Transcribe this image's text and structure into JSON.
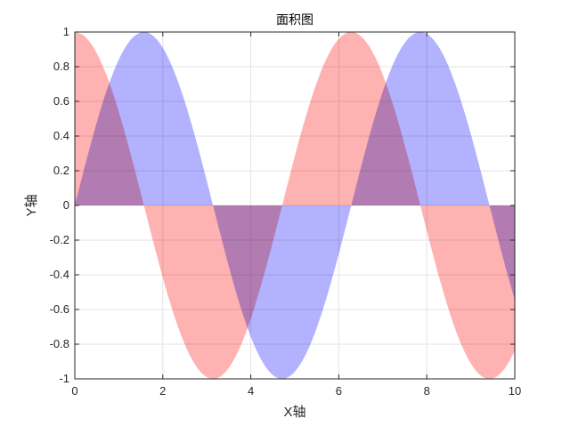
{
  "chart_data": {
    "type": "area",
    "title": "面积图",
    "xlabel": "X轴",
    "ylabel": "Y轴",
    "xlim": [
      0,
      10
    ],
    "ylim": [
      -1,
      1
    ],
    "xticks": [
      "0",
      "2",
      "4",
      "6",
      "8",
      "10"
    ],
    "yticks": [
      "-1",
      "-0.8",
      "-0.6",
      "-0.4",
      "-0.2",
      "0",
      "0.2",
      "0.4",
      "0.6",
      "0.8",
      "1"
    ],
    "grid": true,
    "x": [
      0,
      0.2,
      0.4,
      0.6,
      0.8,
      1,
      1.2,
      1.4,
      1.6,
      1.8,
      2,
      2.2,
      2.4,
      2.6,
      2.8,
      3,
      3.2,
      3.4,
      3.6,
      3.8,
      4,
      4.2,
      4.4,
      4.6,
      4.8,
      5,
      5.2,
      5.4,
      5.6,
      5.8,
      6,
      6.2,
      6.4,
      6.6,
      6.8,
      7,
      7.2,
      7.4,
      7.6,
      7.8,
      8,
      8.2,
      8.4,
      8.6,
      8.8,
      9,
      9.2,
      9.4,
      9.6,
      9.8,
      10
    ],
    "series": [
      {
        "color": "#ff0000",
        "alpha": 0.3,
        "values": [
          1,
          0.98,
          0.921,
          0.825,
          0.697,
          0.54,
          0.362,
          0.17,
          -0.029,
          -0.227,
          -0.416,
          -0.589,
          -0.737,
          -0.857,
          -0.942,
          -0.99,
          -0.998,
          -0.967,
          -0.897,
          -0.791,
          -0.654,
          -0.49,
          -0.307,
          -0.112,
          0.087,
          0.284,
          0.469,
          0.635,
          0.776,
          0.886,
          0.96,
          0.997,
          0.993,
          0.95,
          0.869,
          0.754,
          0.608,
          0.439,
          0.251,
          0.054,
          -0.146,
          -0.34,
          -0.519,
          -0.679,
          -0.811,
          -0.911,
          -0.975,
          -1.0,
          -0.985,
          -0.93,
          -0.839
        ]
      },
      {
        "color": "#0000ff",
        "alpha": 0.3,
        "values": [
          0,
          0.199,
          0.389,
          0.565,
          0.717,
          0.841,
          0.932,
          0.985,
          1.0,
          0.974,
          0.909,
          0.808,
          0.675,
          0.516,
          0.335,
          0.141,
          -0.058,
          -0.256,
          -0.443,
          -0.612,
          -0.757,
          -0.872,
          -0.952,
          -0.994,
          -0.996,
          -0.959,
          -0.883,
          -0.773,
          -0.631,
          -0.465,
          -0.279,
          -0.083,
          0.117,
          0.312,
          0.494,
          0.657,
          0.794,
          0.899,
          0.968,
          0.999,
          0.989,
          0.941,
          0.855,
          0.734,
          0.585,
          0.412,
          0.223,
          0.025,
          -0.174,
          -0.366,
          -0.544
        ]
      }
    ]
  }
}
